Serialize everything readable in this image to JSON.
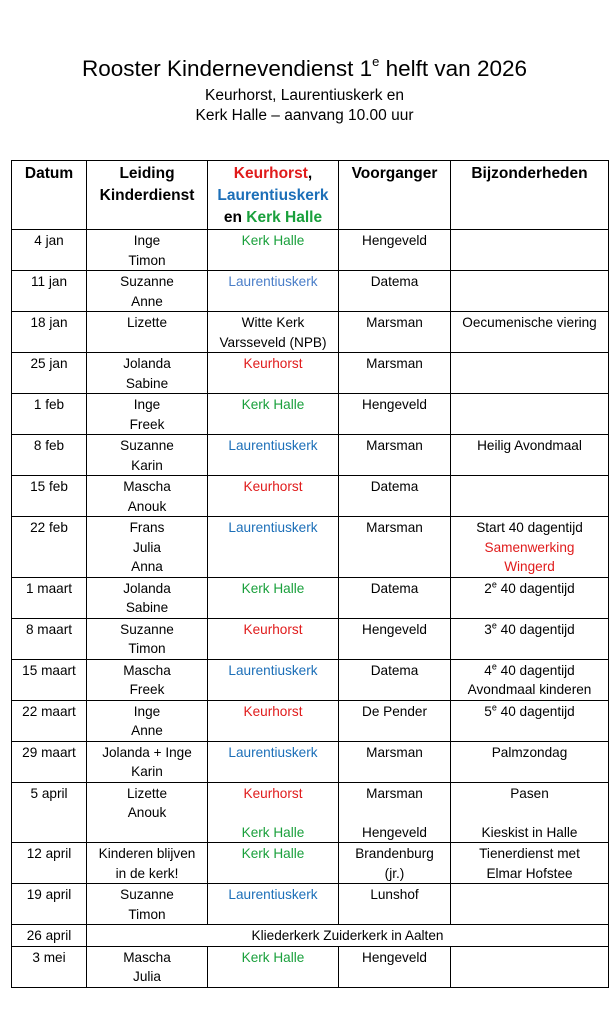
{
  "title": {
    "main": "Rooster Kindernevendienst 1",
    "sup": "e",
    "rest": " helft van 2026"
  },
  "subtitle": {
    "line1": "Keurhorst, Laurentiuskerk en",
    "line2": "Kerk Halle – aanvang 10.00 uur"
  },
  "colors": {
    "keurhorst": "#e01b1b",
    "laurentiuskerk": "#1c6fb8",
    "kerk_halle": "#1aa03c"
  },
  "headers": {
    "datum": "Datum",
    "leiding_1": "Leiding",
    "leiding_2": "Kinderdienst",
    "locatie_keurhorst": "Keurhorst",
    "locatie_comma": ",",
    "locatie_laurentius": "Laurentiuskerk",
    "locatie_en": "en ",
    "locatie_halle": "Kerk Halle",
    "voorganger": "Voorganger",
    "bijzonderheden": "Bijzonderheden"
  },
  "rows": [
    {
      "datum": "4 jan",
      "leiding": [
        "Inge",
        "Timon"
      ],
      "locatie": [
        {
          "text": "Kerk Halle",
          "color": "green"
        }
      ],
      "voorganger": [
        "Hengeveld"
      ],
      "bijzonderheden": []
    },
    {
      "datum": "11 jan",
      "leiding": [
        "Suzanne",
        "Anne"
      ],
      "locatie": [
        {
          "text": "Laurentiuskerk",
          "color": "lblue"
        }
      ],
      "voorganger": [
        "Datema"
      ],
      "bijzonderheden": []
    },
    {
      "datum": "18 jan",
      "leiding": [
        "Lizette"
      ],
      "locatie": [
        {
          "text": "Witte Kerk",
          "color": "black"
        },
        {
          "text": "Varsseveld (NPB)",
          "color": "black"
        }
      ],
      "voorganger": [
        "Marsman"
      ],
      "bijzonderheden": [
        {
          "text": "Oecumenische viering"
        }
      ]
    },
    {
      "datum": "25 jan",
      "leiding": [
        "Jolanda",
        "Sabine"
      ],
      "locatie": [
        {
          "text": "Keurhorst",
          "color": "red"
        }
      ],
      "voorganger": [
        "Marsman"
      ],
      "bijzonderheden": []
    },
    {
      "datum": "1 feb",
      "leiding": [
        "Inge",
        "Freek"
      ],
      "locatie": [
        {
          "text": "Kerk Halle",
          "color": "green"
        }
      ],
      "voorganger": [
        "Hengeveld"
      ],
      "bijzonderheden": []
    },
    {
      "datum": "8 feb",
      "leiding": [
        "Suzanne",
        "Karin"
      ],
      "locatie": [
        {
          "text": "Laurentiuskerk",
          "color": "blue"
        }
      ],
      "voorganger": [
        "Marsman"
      ],
      "bijzonderheden": [
        {
          "text": "Heilig Avondmaal"
        }
      ]
    },
    {
      "datum": "15 feb",
      "leiding": [
        "Mascha",
        "Anouk"
      ],
      "locatie": [
        {
          "text": "Keurhorst",
          "color": "red"
        }
      ],
      "voorganger": [
        "Datema"
      ],
      "bijzonderheden": []
    },
    {
      "datum": "22 feb",
      "leiding": [
        "Frans",
        "Julia",
        "Anna"
      ],
      "locatie": [
        {
          "text": "Laurentiuskerk",
          "color": "blue"
        }
      ],
      "voorganger": [
        "Marsman"
      ],
      "bijzonderheden": [
        {
          "text": "Start 40 dagentijd"
        },
        {
          "text": "Samenwerking",
          "color": "red"
        },
        {
          "text": "Wingerd",
          "color": "red"
        }
      ]
    },
    {
      "datum": "1 maart",
      "leiding": [
        "Jolanda",
        "Sabine"
      ],
      "locatie": [
        {
          "text": "Kerk Halle",
          "color": "green"
        }
      ],
      "voorganger": [
        "Datema"
      ],
      "bijzonderheden": [
        {
          "num": "2",
          "sup": "e",
          "text": " 40 dagentijd"
        }
      ]
    },
    {
      "datum": "8 maart",
      "leiding": [
        "Suzanne",
        "Timon"
      ],
      "locatie": [
        {
          "text": "Keurhorst",
          "color": "red"
        }
      ],
      "voorganger": [
        "Hengeveld"
      ],
      "bijzonderheden": [
        {
          "num": "3",
          "sup": "e",
          "text": " 40 dagentijd"
        }
      ]
    },
    {
      "datum": "15 maart",
      "leiding": [
        "Mascha",
        "Freek"
      ],
      "locatie": [
        {
          "text": "Laurentiuskerk",
          "color": "blue"
        }
      ],
      "voorganger": [
        "Datema"
      ],
      "bijzonderheden": [
        {
          "num": "4",
          "sup": "e",
          "text": " 40 dagentijd"
        },
        {
          "text": "Avondmaal kinderen"
        }
      ]
    },
    {
      "datum": "22 maart",
      "leiding": [
        "Inge",
        "Anne"
      ],
      "locatie": [
        {
          "text": "Keurhorst",
          "color": "red"
        }
      ],
      "voorganger": [
        "De Pender"
      ],
      "bijzonderheden": [
        {
          "num": "5",
          "sup": "e",
          "text": " 40 dagentijd"
        }
      ]
    },
    {
      "datum": "29 maart",
      "leiding": [
        "Jolanda + Inge",
        "Karin"
      ],
      "locatie": [
        {
          "text": "Laurentiuskerk",
          "color": "blue"
        }
      ],
      "voorganger": [
        "Marsman"
      ],
      "bijzonderheden": [
        {
          "text": "Palmzondag"
        }
      ]
    },
    {
      "datum": "5 april",
      "leiding": [
        "Lizette",
        "Anouk"
      ],
      "locatie": [
        {
          "text": "Keurhorst",
          "color": "red"
        },
        {
          "text": "",
          "color": "black"
        },
        {
          "text": "Kerk Halle",
          "color": "green"
        }
      ],
      "voorganger": [
        "Marsman",
        "",
        "Hengeveld"
      ],
      "bijzonderheden": [
        {
          "text": "Pasen"
        },
        {
          "text": ""
        },
        {
          "text": "Kieskist in Halle"
        }
      ]
    },
    {
      "datum": "12 april",
      "leiding": [
        "Kinderen blijven",
        "in de kerk!"
      ],
      "locatie": [
        {
          "text": "Kerk Halle",
          "color": "green"
        }
      ],
      "voorganger": [
        "Brandenburg",
        "(jr.)"
      ],
      "bijzonderheden": [
        {
          "text": "Tienerdienst met"
        },
        {
          "text": "Elmar Hofstee"
        }
      ]
    },
    {
      "datum": "19 april",
      "leiding": [
        "Suzanne",
        "Timon"
      ],
      "locatie": [
        {
          "text": "Laurentiuskerk",
          "color": "blue"
        }
      ],
      "voorganger": [
        "Lunshof"
      ],
      "bijzonderheden": []
    },
    {
      "datum": "26 april",
      "merged": "Kliederkerk Zuiderkerk in Aalten"
    },
    {
      "datum": "3 mei",
      "leiding": [
        "Mascha",
        "Julia"
      ],
      "locatie": [
        {
          "text": "Kerk Halle",
          "color": "green"
        }
      ],
      "voorganger": [
        "Hengeveld"
      ],
      "bijzonderheden": []
    }
  ]
}
